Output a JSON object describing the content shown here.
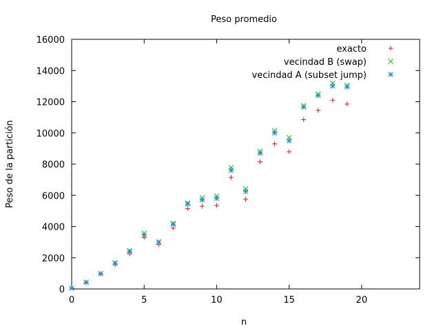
{
  "chart_data": {
    "type": "scatter",
    "title": "Peso promedio",
    "xlabel": "n",
    "ylabel": "Peso de la partición",
    "xlim": [
      0,
      24
    ],
    "ylim": [
      0,
      16000
    ],
    "xticks": [
      0,
      5,
      10,
      15,
      20
    ],
    "yticks": [
      0,
      2000,
      4000,
      6000,
      8000,
      10000,
      12000,
      14000,
      16000
    ],
    "grid": false,
    "legend_position": "top-right",
    "series": [
      {
        "name": "exacto",
        "marker": "plus",
        "color": "#e41a1c",
        "x": [
          0,
          1,
          2,
          3,
          4,
          5,
          6,
          7,
          8,
          9,
          10,
          11,
          12,
          13,
          14,
          15,
          16,
          17,
          18,
          19
        ],
        "y": [
          50,
          400,
          950,
          1550,
          2250,
          3300,
          2850,
          3900,
          5150,
          5300,
          5350,
          7150,
          5750,
          8150,
          9300,
          8800,
          10850,
          11450,
          12100,
          11850
        ]
      },
      {
        "name": "vecindad B (swap)",
        "marker": "cross",
        "color": "#22b422",
        "x": [
          0,
          1,
          2,
          3,
          4,
          5,
          6,
          7,
          8,
          9,
          10,
          11,
          12,
          13,
          14,
          15,
          16,
          17,
          18,
          19
        ],
        "y": [
          50,
          430,
          980,
          1680,
          2450,
          3580,
          3020,
          4200,
          5500,
          5850,
          5950,
          7780,
          6420,
          8830,
          10150,
          9700,
          11750,
          12500,
          13200,
          13050
        ]
      },
      {
        "name": "vecindad A (subset jump)",
        "marker": "star",
        "color": "#1e8cd2",
        "x": [
          0,
          1,
          2,
          3,
          4,
          5,
          6,
          7,
          8,
          9,
          10,
          11,
          12,
          13,
          14,
          15,
          16,
          17,
          18,
          19
        ],
        "y": [
          50,
          430,
          980,
          1650,
          2400,
          3450,
          3000,
          4150,
          5450,
          5700,
          5800,
          7600,
          6250,
          8700,
          10000,
          9500,
          11650,
          12400,
          13000,
          12950
        ]
      }
    ]
  }
}
